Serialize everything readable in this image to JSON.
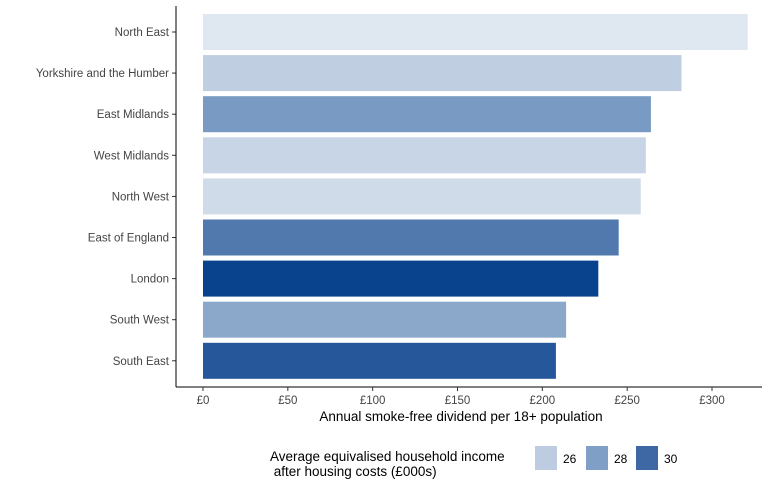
{
  "chart_data": {
    "type": "bar",
    "orientation": "horizontal",
    "categories": [
      "North East",
      "Yorkshire and the Humber",
      "East Midlands",
      "West Midlands",
      "North West",
      "East of England",
      "London",
      "South West",
      "South East"
    ],
    "values": [
      321,
      282,
      264,
      261,
      258,
      245,
      233,
      214,
      208
    ],
    "income_values": [
      23.5,
      25.8,
      28.2,
      25.2,
      24.6,
      29.4,
      31.3,
      27.6,
      30.6
    ],
    "xlabel": "Annual smoke-free dividend per 18+ population",
    "ylabel": "",
    "xlim": [
      0,
      335
    ],
    "x_ticks": [
      0,
      50,
      100,
      150,
      200,
      250,
      300
    ],
    "x_tick_labels": [
      "£0",
      "£50",
      "£100",
      "£150",
      "£200",
      "£250",
      "£300"
    ],
    "grid": false,
    "legend": {
      "title_line1": "Average equivalised household income",
      "title_line2": " after housing costs (£000s)",
      "position": "bottom",
      "entries": [
        {
          "label": "26",
          "value": 26
        },
        {
          "label": "28",
          "value": 28
        },
        {
          "label": "30",
          "value": 30
        }
      ]
    },
    "color_scale": {
      "domain": [
        23,
        26,
        28,
        30,
        31.5
      ],
      "colors": [
        "#e6ecf4",
        "#bdcce1",
        "#7f9fc6",
        "#3d68a4",
        "#023d8a"
      ]
    }
  }
}
